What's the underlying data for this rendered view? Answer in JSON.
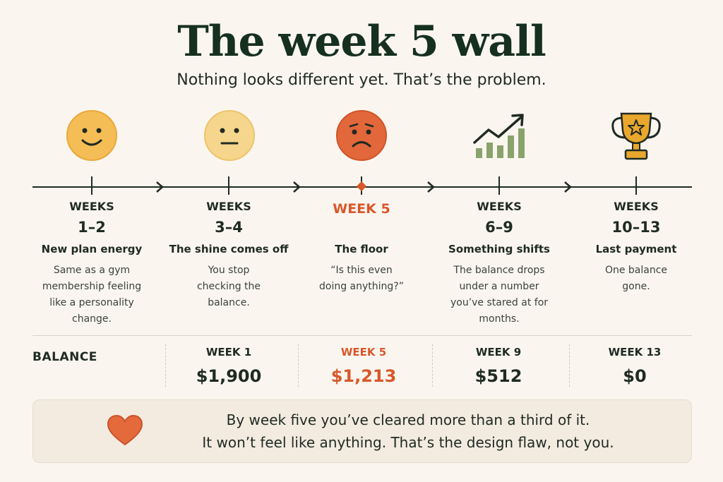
{
  "header": {
    "title": "The week 5 wall",
    "subtitle": "Nothing looks different yet. That’s the problem."
  },
  "stages": [
    {
      "label": "WEEKS",
      "range": "1–2",
      "heading": "New plan energy",
      "body": "Same as a gym membership feeling like a personality change.",
      "icon": "happy-face-icon"
    },
    {
      "label": "WEEKS",
      "range": "3–4",
      "heading": "The shine comes off",
      "body": "You stop checking the balance.",
      "icon": "neutral-face-icon"
    },
    {
      "label": "WEEK 5",
      "range": "",
      "heading": "The floor",
      "body": "“Is this even doing anything?”",
      "icon": "sad-face-icon"
    },
    {
      "label": "WEEKS",
      "range": "6–9",
      "heading": "Something shifts",
      "body": "The balance drops under a number you’ve stared at for months.",
      "icon": "trend-up-icon"
    },
    {
      "label": "WEEKS",
      "range": "10–13",
      "heading": "Last payment",
      "body": "One balance gone.",
      "icon": "trophy-icon"
    }
  ],
  "balance": {
    "label": "BALANCE",
    "points": [
      {
        "week": "WEEK 1",
        "amount": "$1,900"
      },
      {
        "week": "WEEK 5",
        "amount": "$1,213"
      },
      {
        "week": "WEEK 9",
        "amount": "$512"
      },
      {
        "week": "WEEK 13",
        "amount": "$0"
      }
    ]
  },
  "callout": {
    "icon": "heart-icon",
    "line1": "By week five you’ve cleared more than a third of it.",
    "line2": "It won’t feel like anything. That’s the design flaw, not you."
  },
  "colors": {
    "accent": "#d9572b",
    "title": "#16301f",
    "text": "#1f2a22",
    "background": "#faf6ef",
    "face_happy": "#f5bd55",
    "face_neutral": "#f6d58c",
    "face_sad": "#e2673a",
    "chart_green": "#8aa26c",
    "trophy_gold": "#e9a72e",
    "heart": "#e46a3c"
  }
}
